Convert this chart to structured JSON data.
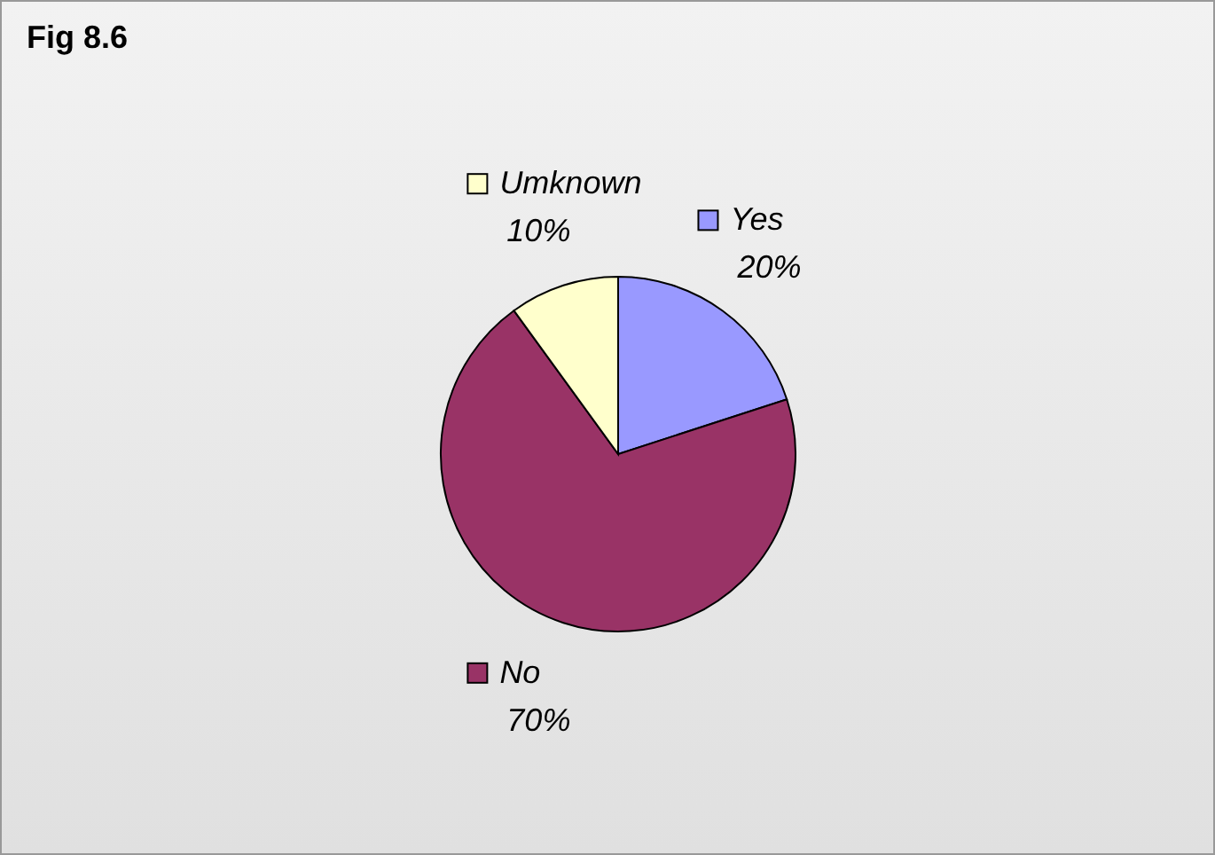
{
  "chart_data": {
    "type": "pie",
    "title": "Fig 8.6",
    "categories": [
      "Yes",
      "No",
      "Umknown"
    ],
    "values": [
      20,
      70,
      10
    ],
    "value_labels": [
      "20%",
      "70%",
      "10%"
    ],
    "colors": [
      "#9999ff",
      "#993366",
      "#ffffcc"
    ],
    "legend": "top"
  }
}
